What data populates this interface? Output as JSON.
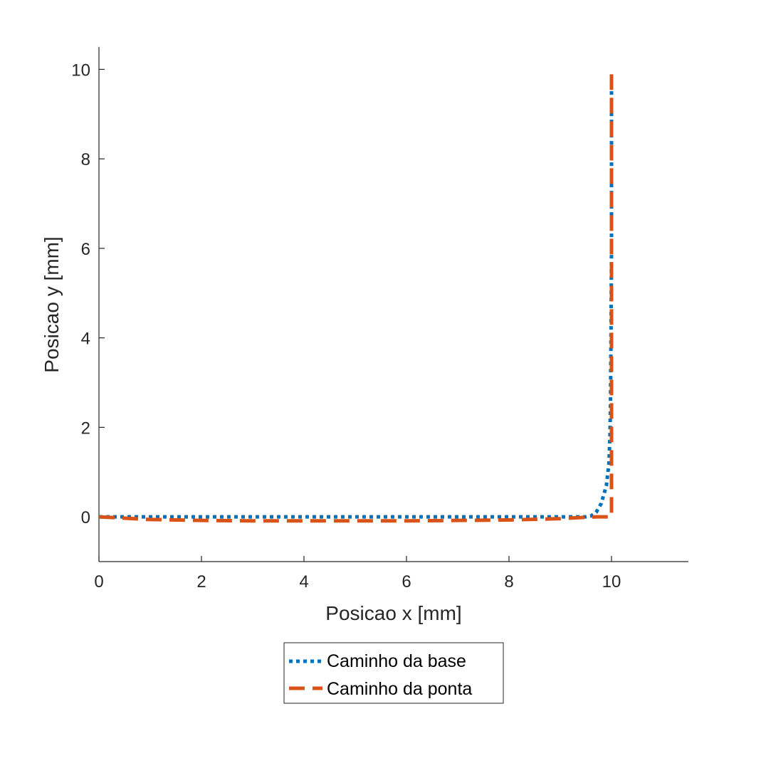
{
  "chart_data": {
    "type": "line",
    "title": "",
    "xlabel": "Posicao x [mm]",
    "ylabel": "Posicao y [mm]",
    "xlim": [
      0,
      11.5
    ],
    "ylim": [
      -1,
      10.5
    ],
    "xticks": [
      0,
      2,
      4,
      6,
      8,
      10
    ],
    "yticks": [
      0,
      2,
      4,
      6,
      8,
      10
    ],
    "xtick_labels": [
      "0",
      "2",
      "4",
      "6",
      "8",
      "10"
    ],
    "ytick_labels": [
      "0",
      "2",
      "4",
      "6",
      "8",
      "10"
    ],
    "grid": false,
    "legend_position": "bottom-outside",
    "series": [
      {
        "name": "Caminho da base",
        "style": "dotted",
        "color": "#0072BD",
        "x": [
          0,
          1,
          2,
          3,
          4,
          5,
          6,
          7,
          8,
          9,
          9.5,
          9.6,
          9.7,
          9.8,
          9.9,
          9.95,
          9.97,
          9.98,
          9.99,
          10.0,
          10.0,
          10.0
        ],
        "y": [
          0,
          0,
          0,
          0,
          0,
          0,
          0,
          0,
          0,
          0,
          0,
          0.02,
          0.1,
          0.3,
          0.7,
          1.2,
          1.8,
          2.5,
          4.0,
          6.0,
          8.0,
          9.6
        ]
      },
      {
        "name": "Caminho da ponta",
        "style": "dashed",
        "color": "#D95319",
        "x": [
          0,
          0.5,
          1,
          2,
          3,
          4,
          5,
          6,
          7,
          8,
          9,
          9.5,
          9.7,
          9.85,
          9.95,
          10.0,
          10.0,
          10.0
        ],
        "y": [
          0,
          -0.03,
          -0.06,
          -0.08,
          -0.09,
          -0.09,
          -0.09,
          -0.09,
          -0.08,
          -0.07,
          -0.04,
          -0.01,
          0,
          0,
          0,
          0,
          5,
          10
        ]
      }
    ]
  }
}
